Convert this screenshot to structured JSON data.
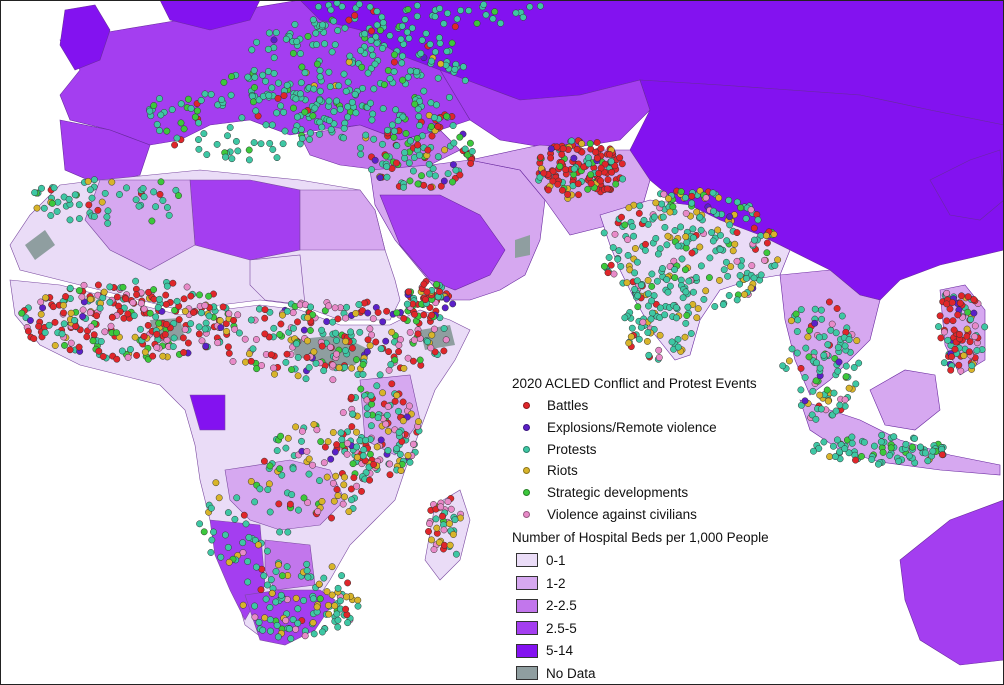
{
  "events_legend": {
    "title": "2020 ACLED Conflict and Protest Events",
    "items": [
      {
        "label": "Battles",
        "color": "#e0262a"
      },
      {
        "label": "Explosions/Remote violence",
        "color": "#5b20c8"
      },
      {
        "label": "Protests",
        "color": "#3ec7a4"
      },
      {
        "label": "Riots",
        "color": "#d8b42a"
      },
      {
        "label": "Strategic developments",
        "color": "#3cc83c"
      },
      {
        "label": "Violence against civilians",
        "color": "#e88ac8"
      }
    ]
  },
  "beds_legend": {
    "title": "Number of Hospital Beds per 1,000 People",
    "items": [
      {
        "label": "0-1",
        "color": "#eadcf7"
      },
      {
        "label": "1-2",
        "color": "#d6a8f0"
      },
      {
        "label": "2-2.5",
        "color": "#c276ec"
      },
      {
        "label": "2.5-5",
        "color": "#a43ef0"
      },
      {
        "label": "5-14",
        "color": "#8312f0"
      },
      {
        "label": "No Data",
        "color": "#8f9ea0"
      }
    ]
  }
}
